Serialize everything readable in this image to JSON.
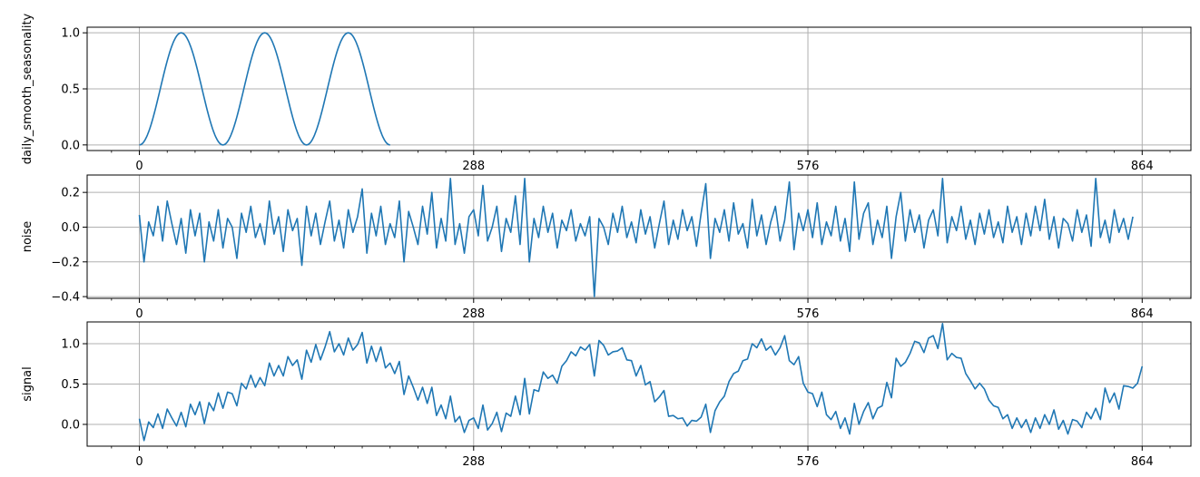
{
  "figure": {
    "background": "#ffffff",
    "line_color": "#1f77b4",
    "grid_color": "#b0b0b0"
  },
  "chart_data": [
    {
      "type": "line",
      "ylabel": "daily_smooth_seasonality",
      "xlim": [
        -45,
        906
      ],
      "ylim": [
        -0.05,
        1.05
      ],
      "xticks": [
        0,
        288,
        576,
        864
      ],
      "xtick_labels": [
        "0",
        "288",
        "576",
        "864"
      ],
      "yticks": [
        0.0,
        0.5,
        1.0
      ],
      "ytick_labels": [
        "0.0",
        "0.5",
        "1.0"
      ],
      "grid": true,
      "series": [
        {
          "x_start": 0,
          "x_step": 1,
          "values": [
            0.0,
            0.0019,
            0.0076,
            0.017,
            0.0302,
            0.0468,
            0.067,
            0.0904,
            0.117,
            0.1464,
            0.1786,
            0.2132,
            0.25,
            0.2887,
            0.329,
            0.3706,
            0.4132,
            0.4564,
            0.5,
            0.5436,
            0.5868,
            0.6294,
            0.671,
            0.7113,
            0.75,
            0.7868,
            0.8214,
            0.8536,
            0.883,
            0.9096,
            0.933,
            0.9532,
            0.9698,
            0.983,
            0.9924,
            0.9981,
            1.0,
            0.9981,
            0.9924,
            0.983,
            0.9698,
            0.9532,
            0.933,
            0.9096,
            0.883,
            0.8536,
            0.8214,
            0.7868,
            0.75,
            0.7113,
            0.671,
            0.6294,
            0.5868,
            0.5436,
            0.5,
            0.4564,
            0.4132,
            0.3706,
            0.329,
            0.2887,
            0.25,
            0.2132,
            0.1786,
            0.1464,
            0.117,
            0.0904,
            0.067,
            0.0468,
            0.0302,
            0.017,
            0.0076,
            0.0019,
            0.0,
            0.0019,
            0.0076,
            0.017,
            0.0302,
            0.0468,
            0.067,
            0.0904,
            0.117,
            0.1464,
            0.1786,
            0.2132,
            0.25,
            0.2887,
            0.329,
            0.3706,
            0.4132,
            0.4564,
            0.5,
            0.5436,
            0.5868,
            0.6294,
            0.671,
            0.7113,
            0.75,
            0.7868,
            0.8214,
            0.8536,
            0.883,
            0.9096,
            0.933,
            0.9532,
            0.9698,
            0.983,
            0.9924,
            0.9981,
            1.0,
            0.9981,
            0.9924,
            0.983,
            0.9698,
            0.9532,
            0.933,
            0.9096,
            0.883,
            0.8536,
            0.8214,
            0.7868,
            0.75,
            0.7113,
            0.671,
            0.6294,
            0.5868,
            0.5436,
            0.5,
            0.4564,
            0.4132,
            0.3706,
            0.329,
            0.2887,
            0.25,
            0.2132,
            0.1786,
            0.1464,
            0.117,
            0.0904,
            0.067,
            0.0468,
            0.0302,
            0.017,
            0.0076,
            0.0019,
            0.0,
            0.0019,
            0.0076,
            0.017,
            0.0302,
            0.0468,
            0.067,
            0.0904,
            0.117,
            0.1464,
            0.1786,
            0.2132,
            0.25,
            0.2887,
            0.329,
            0.3706,
            0.4132,
            0.4564,
            0.5,
            0.5436,
            0.5868,
            0.6294,
            0.671,
            0.7113,
            0.75,
            0.7868,
            0.8214,
            0.8536,
            0.883,
            0.9096,
            0.933,
            0.9532,
            0.9698,
            0.983,
            0.9924,
            0.9981,
            1.0,
            0.9981,
            0.9924,
            0.983,
            0.9698,
            0.9532,
            0.933,
            0.9096,
            0.883,
            0.8536,
            0.8214,
            0.7868,
            0.75,
            0.7113,
            0.671,
            0.6294,
            0.5868,
            0.5436,
            0.5,
            0.4564,
            0.4132,
            0.3706,
            0.329,
            0.2887,
            0.25,
            0.2132,
            0.1786,
            0.1464,
            0.117,
            0.0904,
            0.067,
            0.0468,
            0.0302,
            0.017,
            0.0076,
            0.0019,
            0.0
          ]
        }
      ]
    },
    {
      "type": "line",
      "ylabel": "noise",
      "xlim": [
        -45,
        906
      ],
      "ylim": [
        -0.41,
        0.3
      ],
      "xticks": [
        0,
        288,
        576,
        864
      ],
      "xtick_labels": [
        "0",
        "288",
        "576",
        "864"
      ],
      "yticks": [
        -0.4,
        -0.2,
        0.0,
        0.2
      ],
      "ytick_labels": [
        "−0.4",
        "−0.2",
        "0.0",
        "0.2"
      ],
      "grid": true,
      "series": [
        {
          "x_start": 0,
          "x_step": 4,
          "values": [
            0.07,
            -0.2,
            0.03,
            -0.05,
            0.12,
            -0.08,
            0.15,
            0.02,
            -0.1,
            0.05,
            -0.15,
            0.1,
            -0.05,
            0.08,
            -0.2,
            0.03,
            -0.08,
            0.1,
            -0.12,
            0.05,
            0.0,
            -0.18,
            0.08,
            -0.03,
            0.12,
            -0.06,
            0.02,
            -0.1,
            0.15,
            -0.04,
            0.06,
            -0.14,
            0.1,
            -0.02,
            0.05,
            -0.22,
            0.12,
            -0.05,
            0.08,
            -0.1,
            0.03,
            0.15,
            -0.08,
            0.04,
            -0.12,
            0.1,
            -0.03,
            0.06,
            0.22,
            -0.15,
            0.08,
            -0.05,
            0.12,
            -0.1,
            0.02,
            -0.06,
            0.15,
            -0.2,
            0.09,
            0.0,
            -0.1,
            0.12,
            -0.04,
            0.2,
            -0.12,
            0.05,
            -0.08,
            0.28,
            -0.1,
            0.02,
            -0.15,
            0.06,
            0.1,
            -0.05,
            0.24,
            -0.08,
            0.0,
            0.12,
            -0.14,
            0.05,
            -0.03,
            0.18,
            -0.1,
            0.28,
            -0.2,
            0.05,
            -0.06,
            0.12,
            -0.03,
            0.08,
            -0.12,
            0.04,
            -0.02,
            0.1,
            -0.08,
            0.02,
            -0.05,
            0.06,
            -0.4,
            0.05,
            0.0,
            -0.1,
            0.08,
            -0.03,
            0.12,
            -0.06,
            0.03,
            -0.09,
            0.1,
            -0.04,
            0.06,
            -0.12,
            0.02,
            0.15,
            -0.1,
            0.04,
            -0.07,
            0.1,
            -0.02,
            0.06,
            -0.11,
            0.08,
            0.25,
            -0.18,
            0.05,
            -0.03,
            0.1,
            -0.08,
            0.14,
            -0.04,
            0.02,
            -0.12,
            0.16,
            -0.05,
            0.07,
            -0.1,
            0.03,
            0.12,
            -0.08,
            0.04,
            0.26,
            -0.13,
            0.08,
            -0.02,
            0.1,
            -0.06,
            0.14,
            -0.1,
            0.03,
            -0.05,
            0.12,
            -0.08,
            0.05,
            -0.14,
            0.26,
            -0.07,
            0.08,
            0.14,
            -0.1,
            0.04,
            -0.06,
            0.12,
            -0.18,
            0.06,
            0.2,
            -0.08,
            0.1,
            -0.03,
            0.07,
            -0.12,
            0.04,
            0.1,
            -0.05,
            0.28,
            -0.09,
            0.06,
            -0.02,
            0.12,
            -0.07,
            0.04,
            -0.1,
            0.08,
            -0.04,
            0.1,
            -0.06,
            0.03,
            -0.09,
            0.12,
            -0.03,
            0.06,
            -0.1,
            0.08,
            -0.05,
            0.12,
            -0.02,
            0.16,
            -0.07,
            0.06,
            -0.12,
            0.05,
            0.02,
            -0.08,
            0.1,
            -0.03,
            0.07,
            -0.11,
            0.28,
            -0.06,
            0.04,
            -0.09,
            0.1,
            -0.03,
            0.05,
            -0.07,
            0.06
          ]
        }
      ]
    },
    {
      "type": "line",
      "ylabel": "signal",
      "xlim": [
        -45,
        906
      ],
      "ylim": [
        -0.27,
        1.27
      ],
      "xticks": [
        0,
        288,
        576,
        864
      ],
      "xtick_labels": [
        "0",
        "288",
        "576",
        "864"
      ],
      "yticks": [
        0.0,
        0.5,
        1.0
      ],
      "ytick_labels": [
        "0.0",
        "0.5",
        "1.0"
      ],
      "grid": true,
      "series": [
        {
          "x_start": 0,
          "x_step": 4,
          "values": [
            0.07,
            -0.2,
            0.03,
            -0.04,
            0.13,
            -0.05,
            0.19,
            0.08,
            -0.02,
            0.15,
            -0.03,
            0.25,
            0.12,
            0.28,
            0.01,
            0.27,
            0.17,
            0.39,
            0.2,
            0.4,
            0.38,
            0.23,
            0.51,
            0.44,
            0.61,
            0.46,
            0.58,
            0.48,
            0.76,
            0.6,
            0.73,
            0.6,
            0.84,
            0.73,
            0.8,
            0.56,
            0.92,
            0.77,
            0.99,
            0.8,
            0.96,
            1.15,
            0.9,
            1.0,
            0.86,
            1.07,
            0.92,
            0.99,
            1.14,
            0.76,
            0.97,
            0.78,
            0.96,
            0.7,
            0.76,
            0.63,
            0.78,
            0.37,
            0.6,
            0.46,
            0.3,
            0.46,
            0.26,
            0.46,
            0.11,
            0.24,
            0.07,
            0.35,
            0.03,
            0.1,
            -0.1,
            0.05,
            0.08,
            -0.05,
            0.24,
            -0.07,
            0.01,
            0.15,
            -0.09,
            0.14,
            0.1,
            0.35,
            0.12,
            0.57,
            0.13,
            0.43,
            0.41,
            0.65,
            0.57,
            0.61,
            0.51,
            0.72,
            0.79,
            0.9,
            0.85,
            0.96,
            0.92,
            0.99,
            0.6,
            1.04,
            0.98,
            0.86,
            0.9,
            0.91,
            0.95,
            0.8,
            0.79,
            0.6,
            0.73,
            0.49,
            0.53,
            0.28,
            0.34,
            0.42,
            0.1,
            0.11,
            0.07,
            0.08,
            -0.02,
            0.05,
            0.04,
            0.09,
            0.25,
            -0.1,
            0.17,
            0.28,
            0.35,
            0.53,
            0.63,
            0.66,
            0.79,
            0.81,
            1.0,
            0.95,
            1.06,
            0.92,
            0.97,
            0.86,
            0.95,
            1.1,
            0.79,
            0.74,
            0.84,
            0.51,
            0.4,
            0.38,
            0.22,
            0.4,
            0.12,
            0.06,
            0.16,
            -0.05,
            0.08,
            -0.12,
            0.26,
            0.0,
            0.16,
            0.27,
            0.07,
            0.2,
            0.23,
            0.52,
            0.33,
            0.82,
            0.72,
            0.77,
            0.88,
            1.03,
            1.01,
            0.89,
            1.07,
            1.1,
            0.94,
            1.25,
            0.8,
            0.88,
            0.83,
            0.82,
            0.63,
            0.54,
            0.44,
            0.51,
            0.44,
            0.3,
            0.23,
            0.21,
            0.07,
            0.12,
            -0.05,
            0.08,
            -0.04,
            0.06,
            -0.1,
            0.08,
            -0.05,
            0.12,
            0.0,
            0.18,
            -0.06,
            0.05,
            -0.12,
            0.06,
            0.04,
            -0.04,
            0.15,
            0.07,
            0.2,
            0.06,
            0.45,
            0.27,
            0.39,
            0.19,
            0.48,
            0.47,
            0.45,
            0.51,
            0.72
          ]
        }
      ]
    }
  ]
}
